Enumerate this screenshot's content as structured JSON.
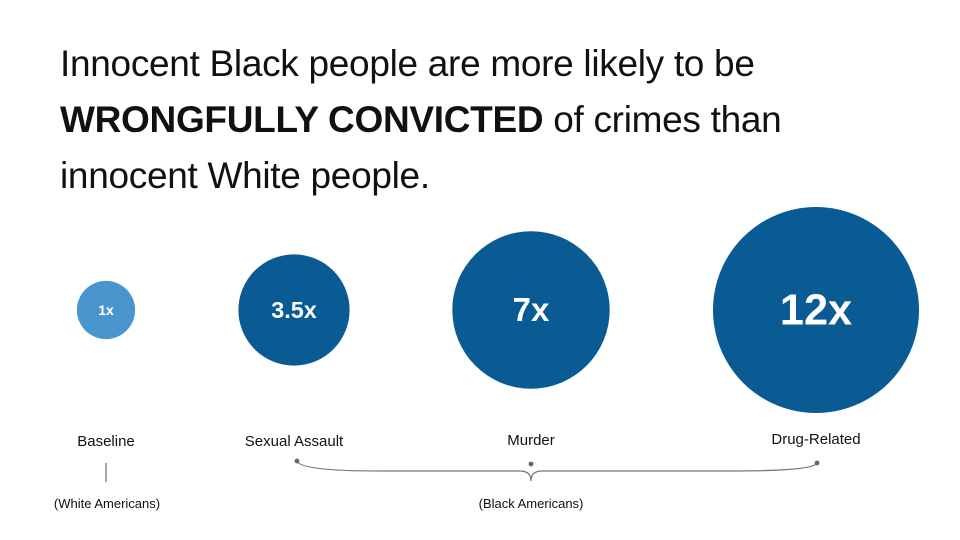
{
  "headline": {
    "line1": "Innocent Black people are more likely to be",
    "emphasis": "WRONGFULLY CONVICTED",
    "line2_rest": " of crimes than",
    "line3": "innocent White people."
  },
  "colors": {
    "baseline_bubble": "#4b95cf",
    "black_bubble": "#0a5a94",
    "connector": "#777777"
  },
  "chart_data": {
    "type": "bubble",
    "title": "",
    "unit": "x",
    "points": [
      {
        "category": "Baseline",
        "value": 1,
        "label": "1x",
        "group": "(White Americans)"
      },
      {
        "category": "Sexual Assault",
        "value": 3.5,
        "label": "3.5x",
        "group": "(Black Americans)"
      },
      {
        "category": "Murder",
        "value": 7,
        "label": "7x",
        "group": "(Black Americans)"
      },
      {
        "category": "Drug-Related",
        "value": 12,
        "label": "12x",
        "group": "(Black Americans)"
      }
    ],
    "groups": [
      "(White Americans)",
      "(Black Americans)"
    ]
  }
}
